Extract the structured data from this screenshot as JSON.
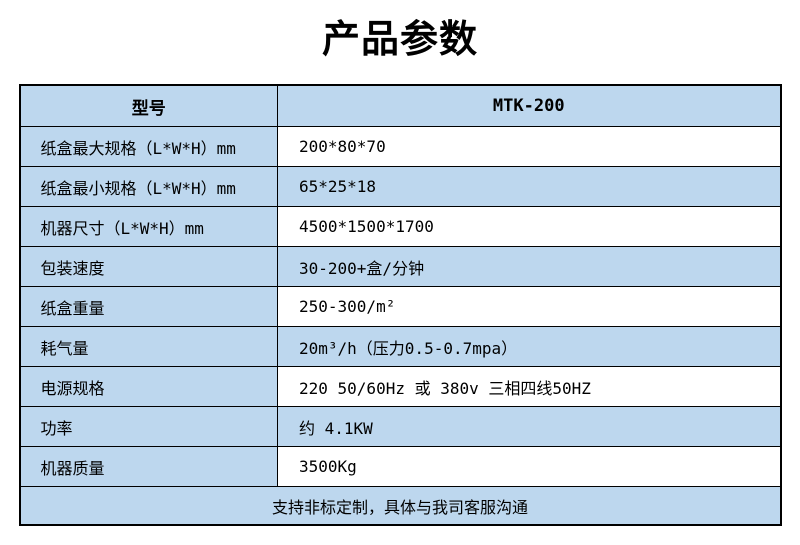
{
  "title": "产品参数",
  "colors": {
    "cell_blue": "#bdd7ee",
    "border": "#000000",
    "text": "#000000"
  },
  "table": {
    "header": {
      "label": "型号",
      "value": "MTK-200"
    },
    "rows": [
      {
        "label": "纸盒最大规格（L*W*H）mm",
        "value": "200*80*70"
      },
      {
        "label": "纸盒最小规格（L*W*H）mm",
        "value": "65*25*18"
      },
      {
        "label": "机器尺寸（L*W*H）mm",
        "value": "4500*1500*1700"
      },
      {
        "label": "包装速度",
        "value": "30-200+盒/分钟"
      },
      {
        "label": "纸盒重量",
        "value": "250-300/m²"
      },
      {
        "label": "耗气量",
        "value": "20m³/h（压力0.5-0.7mpa）"
      },
      {
        "label": "电源规格",
        "value": "220 50/60Hz 或 380v 三相四线50HZ"
      },
      {
        "label": "功率",
        "value": "约 4.1KW"
      },
      {
        "label": "机器质量",
        "value": "3500Kg"
      }
    ],
    "footer_note": "支持非标定制，具体与我司客服沟通"
  }
}
